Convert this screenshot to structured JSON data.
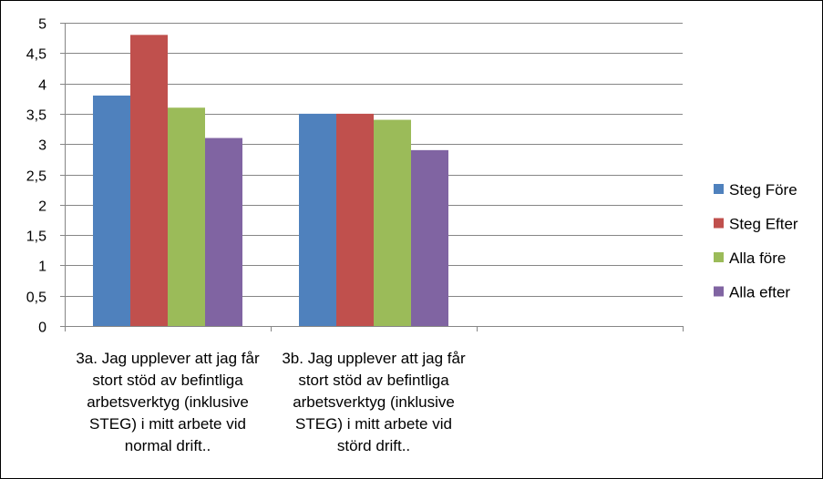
{
  "chart_data": {
    "type": "bar",
    "title": "",
    "xlabel": "",
    "ylabel": "",
    "ylim": [
      0,
      5
    ],
    "y_ticks": [
      "0",
      "0,5",
      "1",
      "1,5",
      "2",
      "2,5",
      "3",
      "3,5",
      "4",
      "4,5",
      "5"
    ],
    "y_tick_values": [
      0,
      0.5,
      1,
      1.5,
      2,
      2.5,
      3,
      3.5,
      4,
      4.5,
      5
    ],
    "grid": true,
    "legend_position": "right",
    "category_slots": 3,
    "categories": [
      [
        "3a. Jag upplever att jag får",
        "stort stöd av befintliga",
        "arbetsverktyg (inklusive",
        "STEG) i mitt arbete vid",
        "normal drift.."
      ],
      [
        "3b. Jag upplever att jag får",
        "stort stöd av befintliga",
        "arbetsverktyg (inklusive",
        "STEG) i mitt arbete vid",
        "störd drift.."
      ]
    ],
    "series": [
      {
        "name": "Steg Före",
        "color": "#4F81BD",
        "values": [
          3.8,
          3.5
        ]
      },
      {
        "name": "Steg Efter",
        "color": "#C0504D",
        "values": [
          4.8,
          3.5
        ]
      },
      {
        "name": "Alla före",
        "color": "#9BBB59",
        "values": [
          3.6,
          3.4
        ]
      },
      {
        "name": "Alla efter",
        "color": "#8064A2",
        "values": [
          3.1,
          2.9
        ]
      }
    ]
  }
}
